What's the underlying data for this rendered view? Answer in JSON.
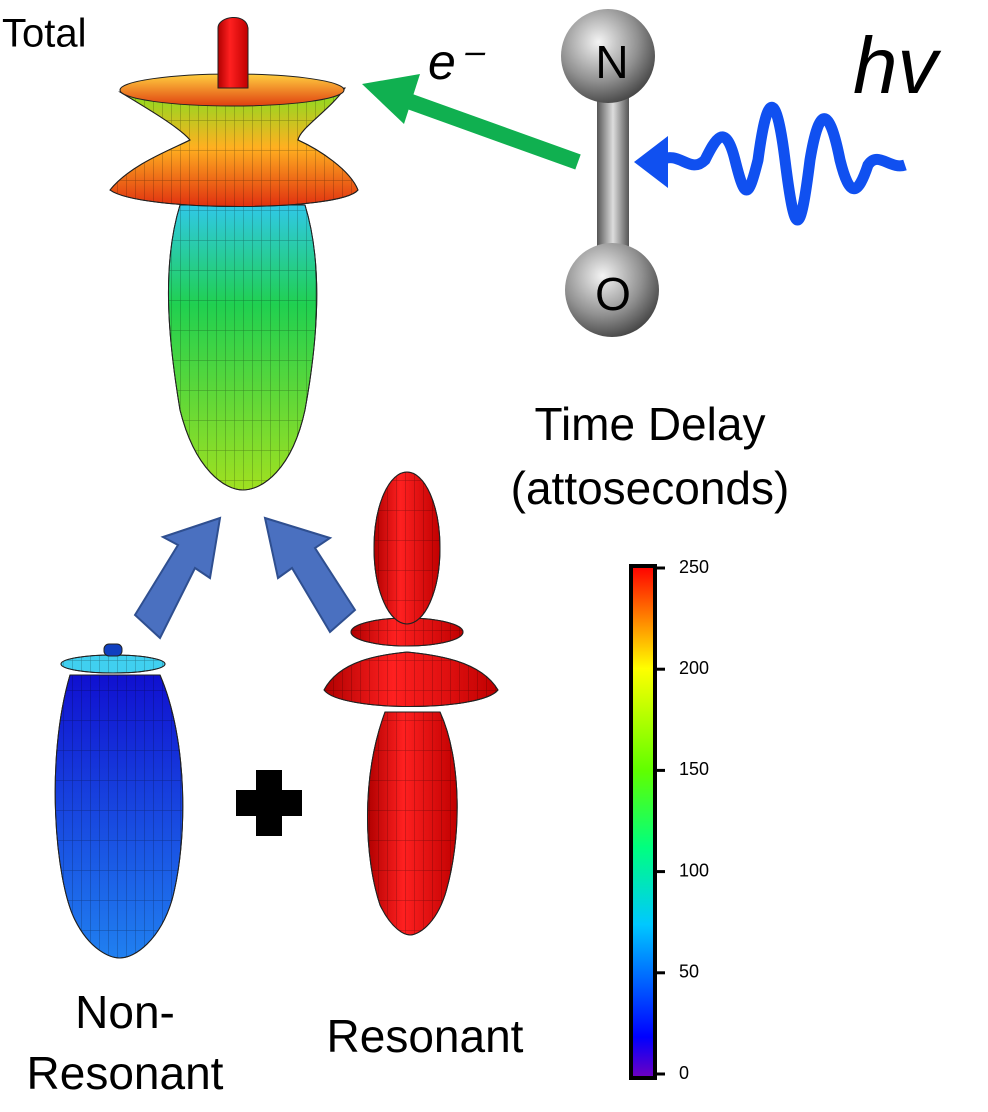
{
  "labels": {
    "total": "Total",
    "electron": "e⁻",
    "nitrogen": "N",
    "oxygen": "O",
    "photon": "hv",
    "delay_title": [
      "Time Delay",
      "(attoseconds)"
    ],
    "non_resonant": [
      "Non-",
      "Resonant"
    ],
    "resonant": "Resonant"
  },
  "colorbar": {
    "range": [
      0,
      250
    ],
    "ticks": [
      0,
      50,
      100,
      150,
      200,
      250
    ]
  }
}
